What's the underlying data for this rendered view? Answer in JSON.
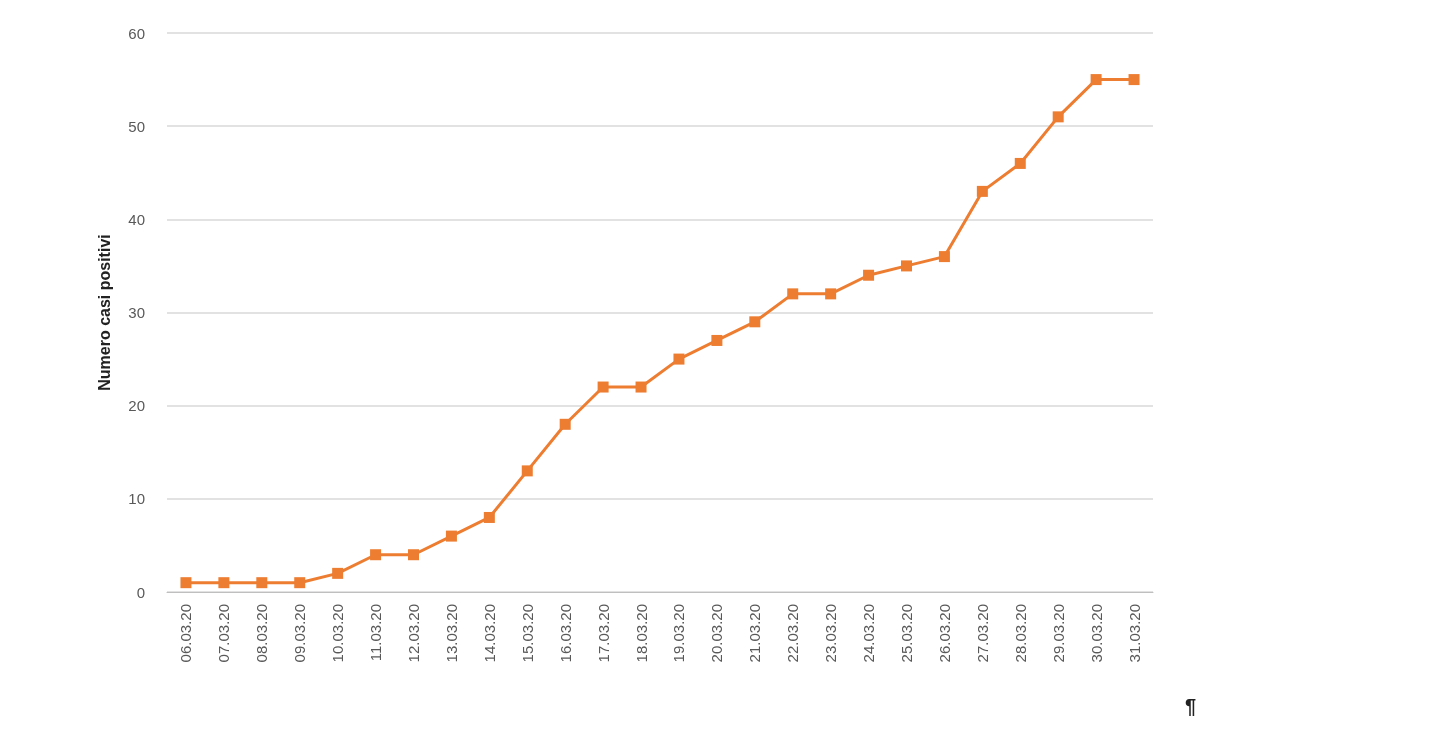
{
  "chart_data": {
    "type": "line",
    "ylabel": "Numero casi positivi",
    "categories": [
      "06.03.20",
      "07.03.20",
      "08.03.20",
      "09.03.20",
      "10.03.20",
      "11.03.20",
      "12.03.20",
      "13.03.20",
      "14.03.20",
      "15.03.20",
      "16.03.20",
      "17.03.20",
      "18.03.20",
      "19.03.20",
      "20.03.20",
      "21.03.20",
      "22.03.20",
      "23.03.20",
      "24.03.20",
      "25.03.20",
      "26.03.20",
      "27.03.20",
      "28.03.20",
      "29.03.20",
      "30.03.20",
      "31.03.20"
    ],
    "series": [
      {
        "color": "#ed7d31",
        "values": [
          1,
          1,
          1,
          1,
          2,
          4,
          4,
          6,
          8,
          13,
          18,
          22,
          22,
          25,
          27,
          29,
          32,
          32,
          34,
          35,
          36,
          43,
          46,
          51,
          55,
          55
        ]
      }
    ],
    "ylim": [
      0,
      60
    ],
    "yticks": [
      0,
      10,
      20,
      30,
      40,
      50,
      60
    ],
    "grid": "y",
    "marker": "square",
    "line_style": "solid",
    "annotations": [
      "¶"
    ]
  }
}
